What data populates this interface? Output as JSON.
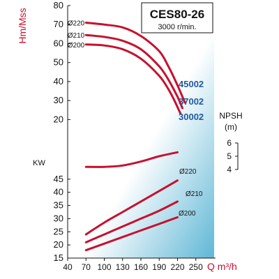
{
  "chart_data": {
    "type": "line",
    "title": "CES80-26",
    "subtitle": "3000 r/min.",
    "x_axis": {
      "label": "Q m³/h",
      "ticks": [
        "40",
        "70",
        "100",
        "130",
        "160",
        "190",
        "220",
        "250"
      ],
      "range": [
        40,
        280
      ]
    },
    "head_axis": {
      "label": "Hm/Mss",
      "ticks": [
        "20",
        "30",
        "40",
        "50",
        "60",
        "70",
        "80"
      ],
      "range": [
        15,
        80
      ]
    },
    "power_axis": {
      "label": "KW",
      "ticks": [
        "15",
        "20",
        "25",
        "30",
        "35",
        "40",
        "45"
      ],
      "range": [
        15,
        50
      ]
    },
    "npsh_axis": {
      "label": "NPSH",
      "unit": "(m)",
      "ticks": [
        "4",
        "5",
        "6"
      ]
    },
    "head_curves": [
      {
        "name": "Ø220",
        "model": "45002",
        "points": [
          [
            70,
            71
          ],
          [
            100,
            70
          ],
          [
            130,
            68.5
          ],
          [
            160,
            64
          ],
          [
            190,
            56
          ],
          [
            205,
            48
          ],
          [
            220,
            38
          ],
          [
            232,
            29
          ]
        ]
      },
      {
        "name": "Ø210",
        "model": "37002",
        "points": [
          [
            70,
            64.5
          ],
          [
            100,
            63.5
          ],
          [
            130,
            61.5
          ],
          [
            160,
            57
          ],
          [
            190,
            48
          ],
          [
            205,
            41
          ],
          [
            220,
            32
          ],
          [
            228,
            26
          ]
        ]
      },
      {
        "name": "Ø200",
        "model": "30002",
        "points": [
          [
            70,
            59.5
          ],
          [
            100,
            59
          ],
          [
            130,
            57
          ],
          [
            160,
            52
          ],
          [
            190,
            43
          ],
          [
            205,
            36
          ],
          [
            215,
            30
          ],
          [
            225,
            23
          ]
        ]
      }
    ],
    "npsh_curve": {
      "points": [
        [
          70,
          4.2
        ],
        [
          100,
          4.2
        ],
        [
          130,
          4.3
        ],
        [
          160,
          4.6
        ],
        [
          190,
          5.0
        ],
        [
          220,
          5.3
        ]
      ]
    },
    "power_curves": [
      {
        "name": "Ø220",
        "points": [
          [
            70,
            24
          ],
          [
            100,
            28.5
          ],
          [
            130,
            32.5
          ],
          [
            160,
            36.5
          ],
          [
            190,
            40.5
          ],
          [
            220,
            44.5
          ]
        ]
      },
      {
        "name": "Ø210",
        "points": [
          [
            70,
            21
          ],
          [
            100,
            24
          ],
          [
            130,
            27
          ],
          [
            160,
            30
          ],
          [
            190,
            33
          ],
          [
            220,
            36.5
          ]
        ]
      },
      {
        "name": "Ø200",
        "points": [
          [
            70,
            18
          ],
          [
            100,
            20.5
          ],
          [
            130,
            23
          ],
          [
            160,
            25.5
          ],
          [
            190,
            28
          ],
          [
            220,
            30.5
          ]
        ]
      }
    ],
    "colors": {
      "curve": "#c8102e",
      "axis_label": "#c8102e",
      "model_tag": "#1f5a9e",
      "background_gradient_start": "#ffffff",
      "background_gradient_end": "#5fb7d6"
    },
    "grid": false
  }
}
